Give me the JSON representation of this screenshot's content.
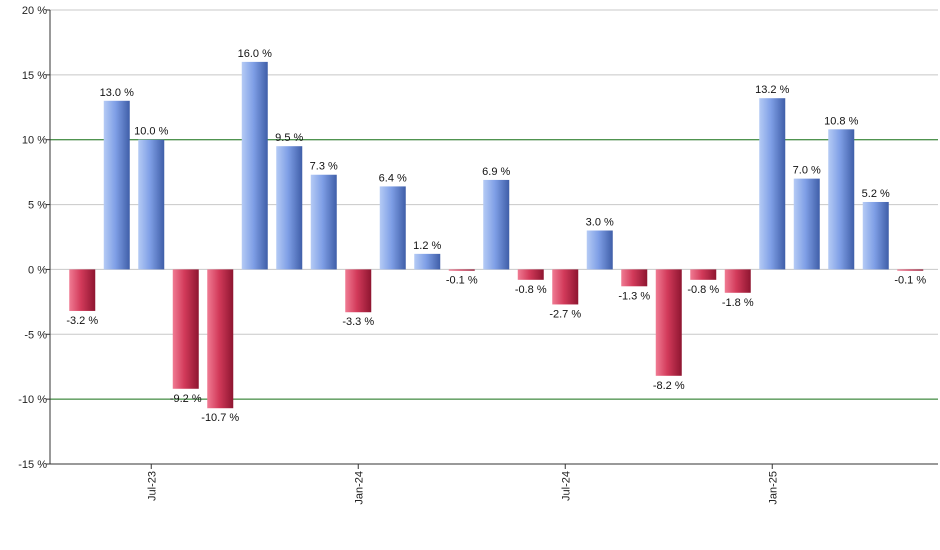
{
  "chart_data": {
    "type": "bar",
    "title": "",
    "xlabel": "",
    "ylabel": "",
    "ylim": [
      -15,
      20
    ],
    "yticks": [
      -15,
      -10,
      -5,
      0,
      5,
      10,
      15,
      20
    ],
    "ytick_labels": [
      "-15 %",
      "-10 %",
      "-5 %",
      "0 %",
      "5 %",
      "10 %",
      "15 %",
      "20 %"
    ],
    "reference_lines": [
      10,
      -10
    ],
    "x_tick_labels": [
      {
        "label": "Jul-23",
        "index": 2
      },
      {
        "label": "Jan-24",
        "index": 8
      },
      {
        "label": "Jul-24",
        "index": 14
      },
      {
        "label": "Jan-25",
        "index": 20
      }
    ],
    "grid": true,
    "legend": "none",
    "values": [
      -3.2,
      13.0,
      10.0,
      -9.2,
      -10.7,
      16.0,
      9.5,
      7.3,
      -3.3,
      6.4,
      1.2,
      -0.1,
      6.9,
      -0.8,
      -2.7,
      3.0,
      -1.3,
      -8.2,
      -0.8,
      -1.8,
      13.2,
      7.0,
      10.8,
      5.2,
      -0.1
    ],
    "labels": [
      "-3.2 %",
      "13.0 %",
      "10.0 %",
      "-9.2 %",
      "-10.7 %",
      "16.0 %",
      "9.5 %",
      "7.3 %",
      "-3.3 %",
      "6.4 %",
      "1.2 %",
      "-0.1 %",
      "6.9 %",
      "-0.8 %",
      "-2.7 %",
      "3.0 %",
      "-1.3 %",
      "-8.2 %",
      "-0.8 %",
      "-1.8 %",
      "13.2 %",
      "7.0 %",
      "10.8 %",
      "5.2 %",
      "-0.1 %"
    ],
    "colors": {
      "positive_light": "#b5cbf5",
      "positive_mid": "#7f9fe6",
      "positive_dark": "#3f5ea8",
      "negative_light": "#f07b93",
      "negative_mid": "#d23a5a",
      "negative_dark": "#8e1530",
      "gridline": "#c8c8c8",
      "reference_line": "#1f7a1f",
      "axis": "#333333"
    }
  }
}
